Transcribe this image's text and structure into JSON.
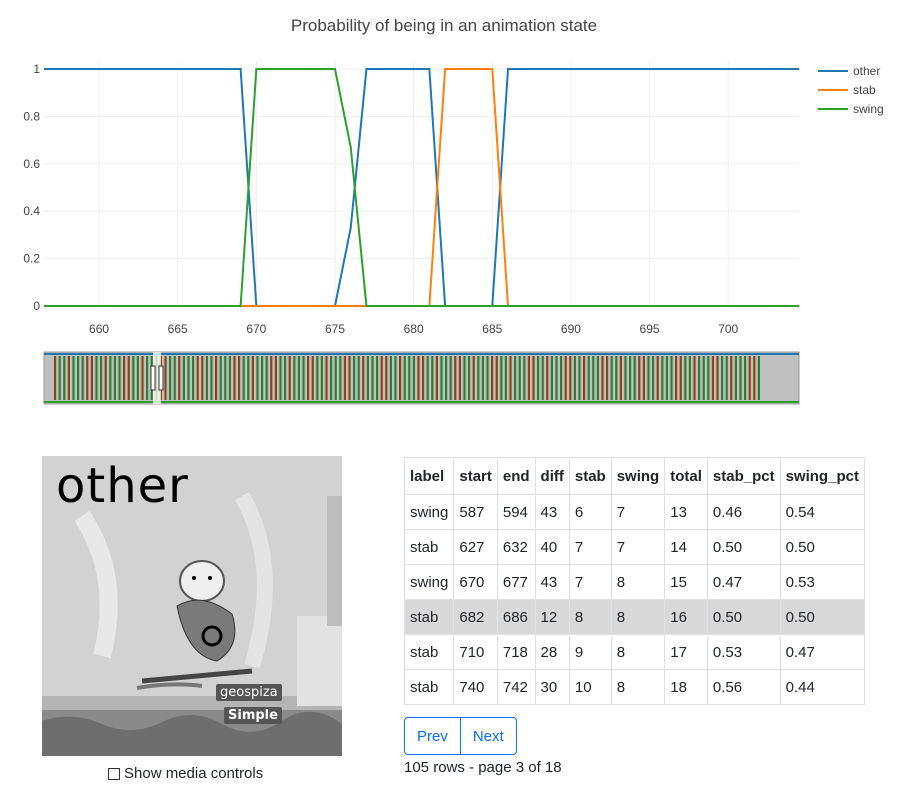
{
  "chart_data": {
    "type": "line",
    "title": "Probability of being in an animation state",
    "xlim": [
      656.5,
      704.5
    ],
    "ylim": [
      0,
      1
    ],
    "x_ticks": [
      660,
      665,
      670,
      675,
      680,
      685,
      690,
      695,
      700
    ],
    "y_ticks": [
      0,
      0.2,
      0.4,
      0.6,
      0.8,
      1
    ],
    "y_tick_labels": [
      "0",
      "0.2",
      "0.4",
      "0.6",
      "0.8",
      "1"
    ],
    "legend_position": "top-right",
    "series": [
      {
        "name": "other",
        "color": "#1f77b4",
        "x": [
          656.5,
          669,
          670,
          675,
          676,
          677,
          681,
          682,
          685,
          686,
          704.5
        ],
        "y": [
          1,
          1,
          0,
          0,
          0.33,
          1,
          1,
          0,
          0,
          1,
          1
        ]
      },
      {
        "name": "stab",
        "color": "#ff7f0e",
        "x": [
          656.5,
          681,
          682,
          685,
          686,
          704.5
        ],
        "y": [
          0,
          0,
          1,
          1,
          0,
          0
        ]
      },
      {
        "name": "swing",
        "color": "#2ca02c",
        "x": [
          656.5,
          669,
          670,
          675,
          676,
          677,
          704.5
        ],
        "y": [
          0,
          0,
          1,
          1,
          0.67,
          0,
          0
        ]
      }
    ]
  },
  "thumbnail": {
    "label": "other",
    "player_name": "geospiza",
    "guild_name": "Simple"
  },
  "media_controls_label": "Show media controls",
  "table": {
    "columns": [
      "label",
      "start",
      "end",
      "diff",
      "stab",
      "swing",
      "total",
      "stab_pct",
      "swing_pct"
    ],
    "rows": [
      [
        "swing",
        "587",
        "594",
        "43",
        "6",
        "7",
        "13",
        "0.46",
        "0.54"
      ],
      [
        "stab",
        "627",
        "632",
        "40",
        "7",
        "7",
        "14",
        "0.50",
        "0.50"
      ],
      [
        "swing",
        "670",
        "677",
        "43",
        "7",
        "8",
        "15",
        "0.47",
        "0.53"
      ],
      [
        "stab",
        "682",
        "686",
        "12",
        "8",
        "8",
        "16",
        "0.50",
        "0.50"
      ],
      [
        "stab",
        "710",
        "718",
        "28",
        "9",
        "8",
        "17",
        "0.53",
        "0.47"
      ],
      [
        "stab",
        "740",
        "742",
        "30",
        "10",
        "8",
        "18",
        "0.56",
        "0.44"
      ]
    ],
    "highlighted_row": 3
  },
  "pager": {
    "prev": "Prev",
    "next": "Next",
    "summary": "105 rows - page 3 of 18"
  }
}
